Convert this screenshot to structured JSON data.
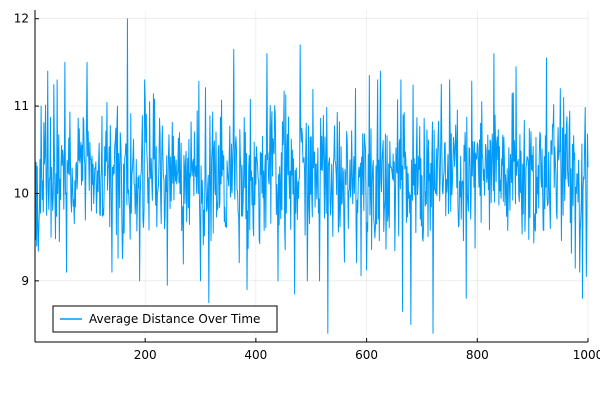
{
  "chart_data": {
    "type": "line",
    "title": "",
    "xlabel": "",
    "ylabel": "",
    "xlim": [
      1,
      1000
    ],
    "ylim": [
      8.3,
      12.1
    ],
    "grid": true,
    "legend_position": "bottom-left",
    "x_ticks": [
      200,
      400,
      600,
      800,
      1000
    ],
    "y_ticks": [
      9,
      10,
      11,
      12
    ],
    "series": [
      {
        "name": "Average Distance Over Time",
        "color": "#009af9",
        "n_points": 1000,
        "baseline": 10.2,
        "notable_points": [
          {
            "x": 1,
            "y": 10.5
          },
          {
            "x": 4,
            "y": 9.4
          },
          {
            "x": 12,
            "y": 11.0
          },
          {
            "x": 24,
            "y": 11.4
          },
          {
            "x": 30,
            "y": 9.5
          },
          {
            "x": 55,
            "y": 11.5
          },
          {
            "x": 58,
            "y": 9.1
          },
          {
            "x": 95,
            "y": 11.5
          },
          {
            "x": 140,
            "y": 9.1
          },
          {
            "x": 150,
            "y": 11.0
          },
          {
            "x": 168,
            "y": 12.0
          },
          {
            "x": 190,
            "y": 9.0
          },
          {
            "x": 240,
            "y": 8.95
          },
          {
            "x": 300,
            "y": 9.0
          },
          {
            "x": 315,
            "y": 8.75
          },
          {
            "x": 360,
            "y": 11.65
          },
          {
            "x": 420,
            "y": 11.6
          },
          {
            "x": 440,
            "y": 9.0
          },
          {
            "x": 470,
            "y": 8.85
          },
          {
            "x": 480,
            "y": 11.7
          },
          {
            "x": 515,
            "y": 9.0
          },
          {
            "x": 530,
            "y": 8.4
          },
          {
            "x": 580,
            "y": 11.2
          },
          {
            "x": 605,
            "y": 11.35
          },
          {
            "x": 625,
            "y": 11.4
          },
          {
            "x": 665,
            "y": 8.65
          },
          {
            "x": 680,
            "y": 8.5
          },
          {
            "x": 720,
            "y": 8.4
          },
          {
            "x": 735,
            "y": 11.25
          },
          {
            "x": 780,
            "y": 8.8
          },
          {
            "x": 830,
            "y": 11.6
          },
          {
            "x": 870,
            "y": 11.45
          },
          {
            "x": 925,
            "y": 11.55
          },
          {
            "x": 950,
            "y": 11.2
          },
          {
            "x": 985,
            "y": 9.1
          },
          {
            "x": 990,
            "y": 8.8
          },
          {
            "x": 1000,
            "y": 10.3
          }
        ]
      }
    ]
  }
}
